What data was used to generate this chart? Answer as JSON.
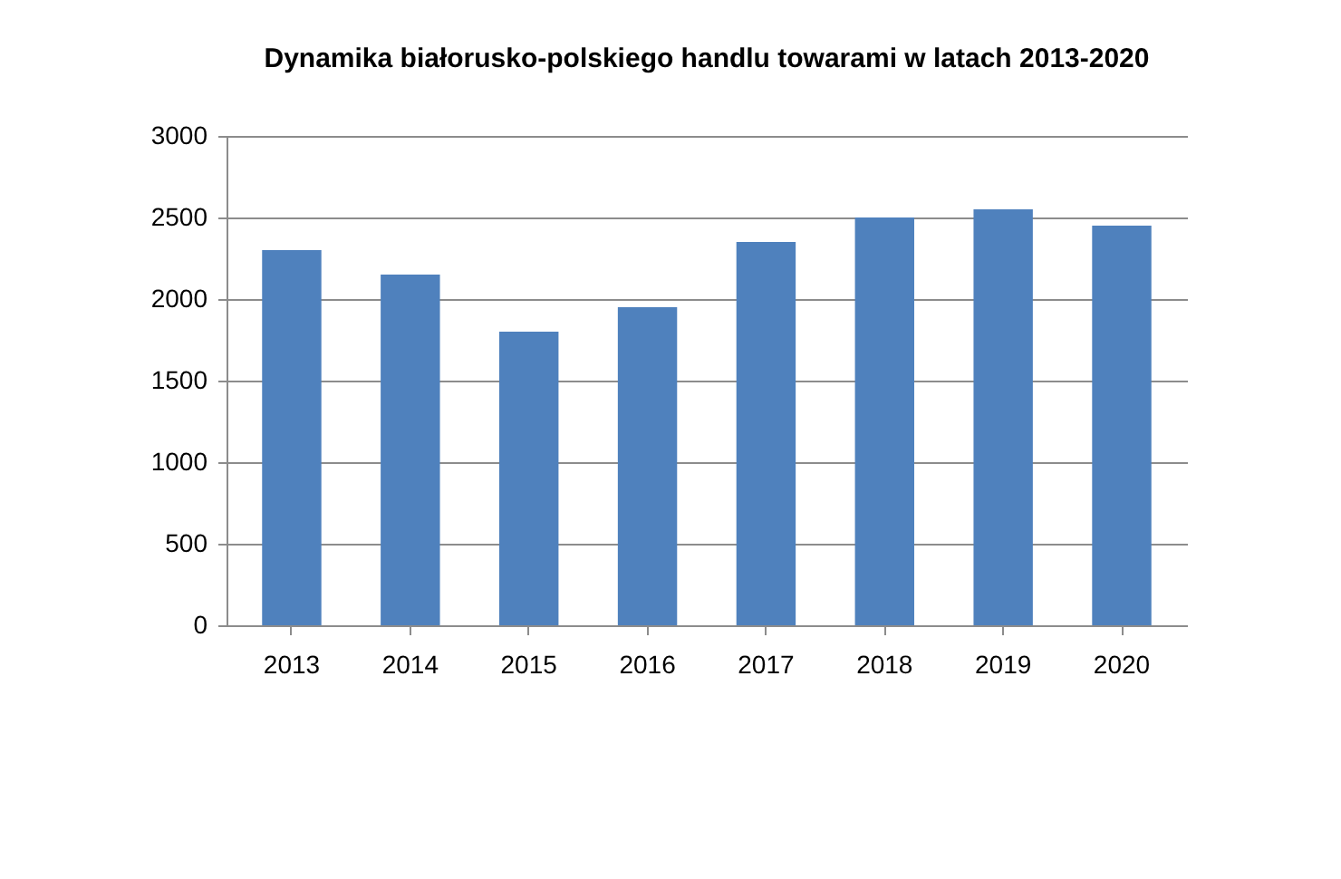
{
  "chart_data": {
    "type": "bar",
    "title": "Dynamika białorusko-polskiego handlu towarami w latach 2013-2020",
    "categories": [
      "2013",
      "2014",
      "2015",
      "2016",
      "2017",
      "2018",
      "2019",
      "2020"
    ],
    "values": [
      2300,
      2150,
      1800,
      1950,
      2350,
      2500,
      2550,
      2450
    ],
    "color": "#4f81bd",
    "ylim": [
      0,
      3000
    ],
    "yticks": [
      0,
      500,
      1000,
      1500,
      2000,
      2500,
      3000
    ],
    "grid": "y"
  }
}
